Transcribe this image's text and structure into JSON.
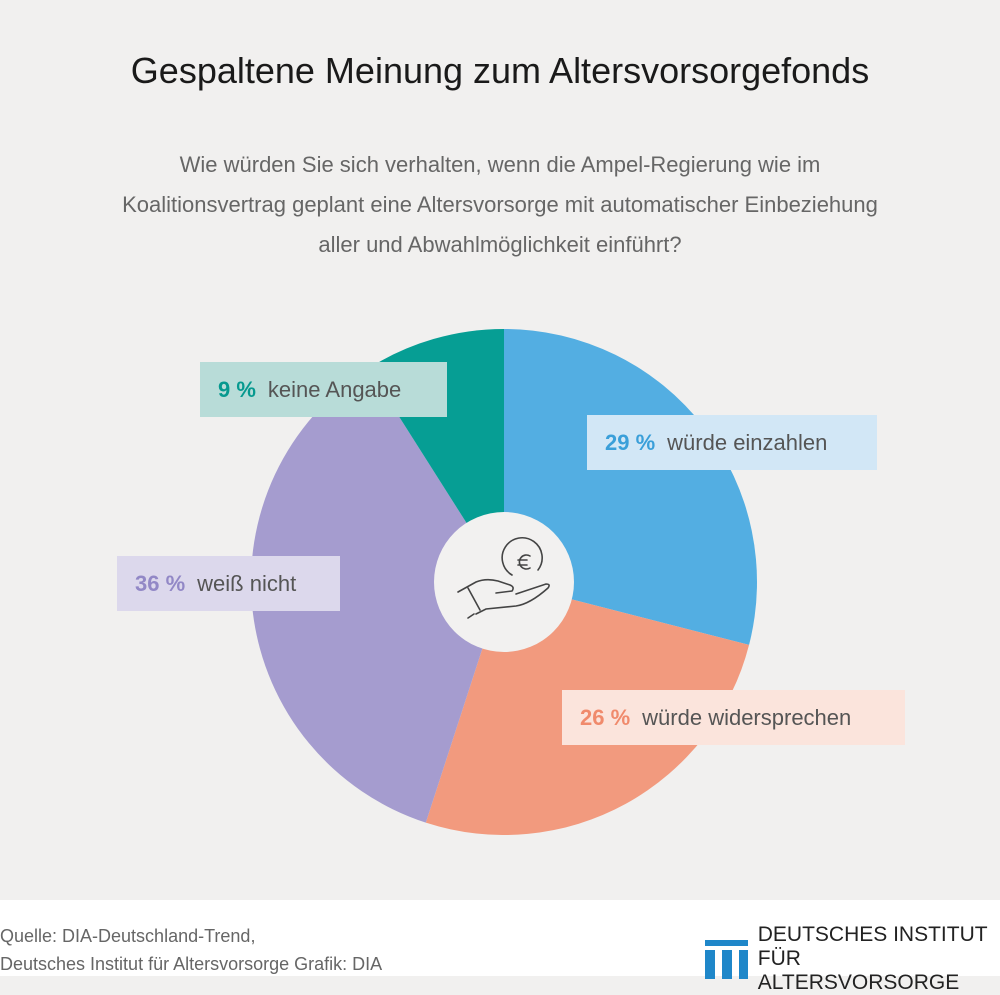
{
  "chart_data": {
    "type": "pie",
    "title": "Gespaltene Meinung zum Altersvorsorgefonds",
    "subtitle": "Wie würden Sie sich verhalten, wenn die Ampel-Regierung wie im Koalitionsvertrag geplant eine Altersvorsorge mit automatischer Einbeziehung aller und Abwahlmöglichkeit einführt?",
    "slices": [
      {
        "label": "würde einzahlen",
        "value": 29,
        "value_label": "29 %",
        "color": "#53aee2",
        "text_color": "#3a9fd9",
        "box_color": "#d2e7f6"
      },
      {
        "label": "würde widersprechen",
        "value": 26,
        "value_label": "26 %",
        "color": "#f29a7e",
        "text_color": "#f08a6c",
        "box_color": "#fbe4dc"
      },
      {
        "label": "weiß nicht",
        "value": 36,
        "value_label": "36 %",
        "color": "#a59ccf",
        "text_color": "#9288c6",
        "box_color": "#dcd8ec"
      },
      {
        "label": "keine Angabe",
        "value": 9,
        "value_label": "9 %",
        "color": "#069e94",
        "text_color": "#06998f",
        "box_color": "#b8dcd8"
      }
    ]
  },
  "footer": {
    "source_line1": "Quelle: DIA-Deutschland-Trend,",
    "source_line2": "Deutsches Institut für Altersvorsorge  Grafik: DIA",
    "logo_line1": "DEUTSCHES INSTITUT",
    "logo_line2": "FÜR ALTERSVORSORGE",
    "logo_color": "#1f87c9"
  }
}
